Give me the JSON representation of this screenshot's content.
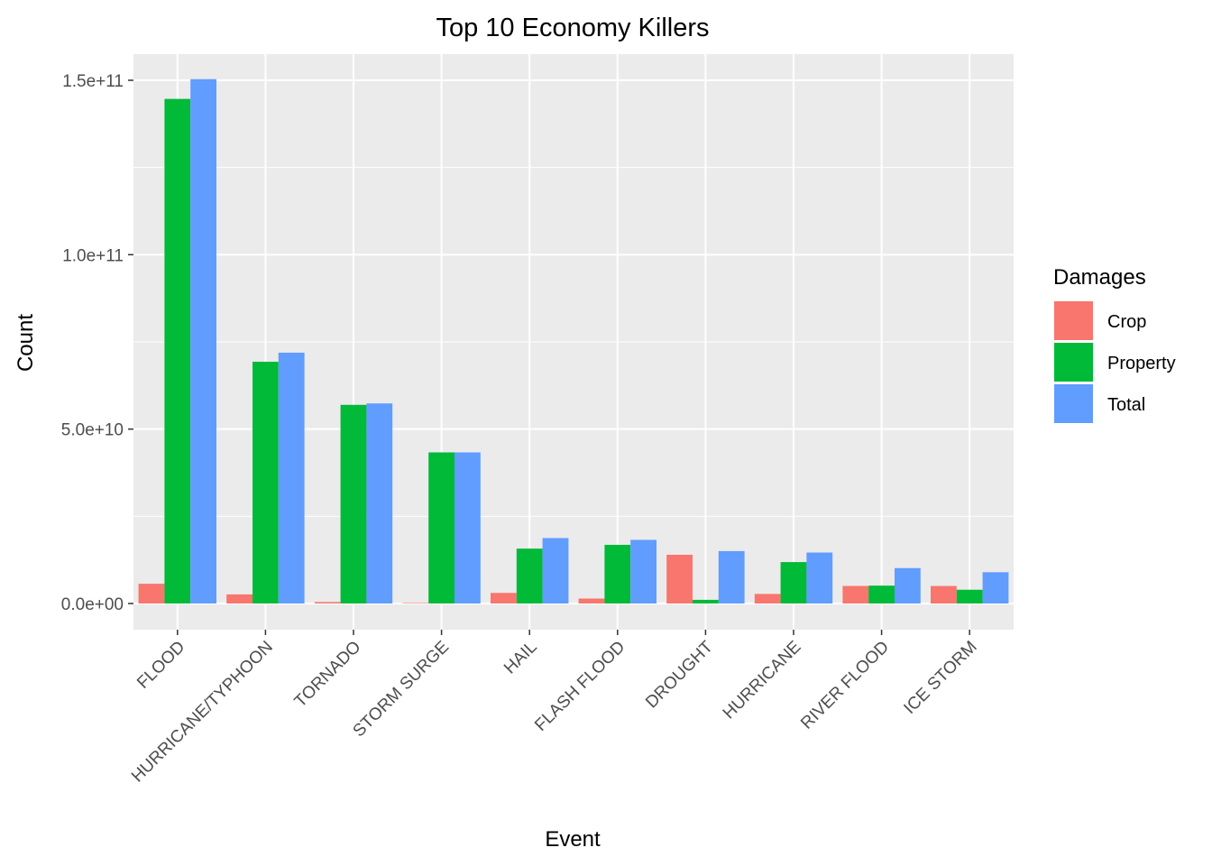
{
  "chart_data": {
    "type": "bar",
    "title": "Top 10 Economy Killers",
    "xlabel": "Event",
    "ylabel": "Count",
    "categories": [
      "FLOOD",
      "HURRICANE/TYPHOON",
      "TORNADO",
      "STORM SURGE",
      "HAIL",
      "FLASH FLOOD",
      "DROUGHT",
      "HURRICANE",
      "RIVER FLOOD",
      "ICE STORM"
    ],
    "series": [
      {
        "name": "Crop",
        "color": "#F8766D",
        "values": [
          5660000000.0,
          2610000000.0,
          415000000.0,
          5000.0,
          3030000000.0,
          1420000000.0,
          13970000000.0,
          2740000000.0,
          5030000000.0,
          5020000000.0
        ]
      },
      {
        "name": "Property",
        "color": "#00BA38",
        "values": [
          144660000000.0,
          69310000000.0,
          56950000000.0,
          43320000000.0,
          15730000000.0,
          16820000000.0,
          1050000000.0,
          11870000000.0,
          5120000000.0,
          3940000000.0
        ]
      },
      {
        "name": "Total",
        "color": "#619CFF",
        "values": [
          150320000000.0,
          71910000000.0,
          57360000000.0,
          43320000000.0,
          18760000000.0,
          18240000000.0,
          15020000000.0,
          14610000000.0,
          10150000000.0,
          8970000000.0
        ]
      }
    ],
    "ylim": [
      -7500000000.0,
      157500000000.0
    ],
    "yticks": [
      0,
      50000000000.0,
      100000000000.0,
      150000000000.0
    ],
    "ytick_labels": [
      "0.0e+00",
      "5.0e+10",
      "1.0e+11",
      "1.5e+11"
    ],
    "grid": true,
    "legend": {
      "title": "Damages",
      "position": "right",
      "items": [
        "Crop",
        "Property",
        "Total"
      ]
    }
  }
}
